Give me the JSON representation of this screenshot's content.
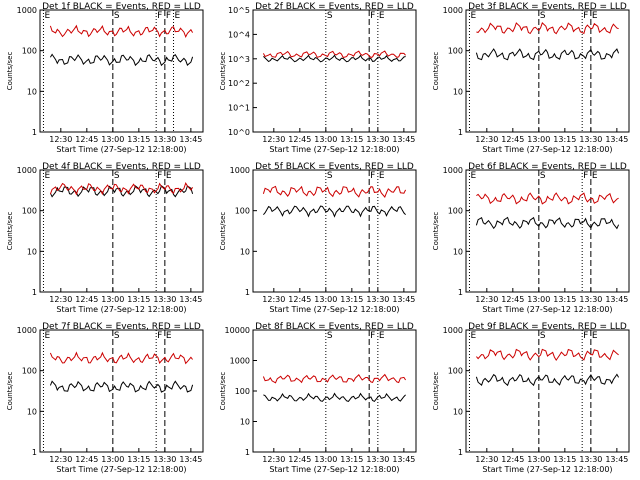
{
  "chart_data": [
    {
      "type": "line",
      "title": "Det 1f BLACK = Events, RED = LLD",
      "ylabel": "Counts/sec",
      "xlabel": "Start Time (27-Sep-12 12:18:00)",
      "yscale": "log",
      "ylim": [
        1,
        1000
      ],
      "ytick_labels": [
        "1",
        "10",
        "100",
        "1000"
      ],
      "x_ticks": [
        "12:30",
        "12:45",
        "13:00",
        "13:15",
        "13:30",
        "13:45"
      ],
      "markers": {
        "E": "12:20",
        "S": "13:00",
        "F": "13:25",
        "F2": "13:30",
        "E2": "13:35"
      },
      "series": [
        {
          "color": "#000000",
          "level": 60
        },
        {
          "color": "#cc0000",
          "level": 300
        }
      ]
    },
    {
      "type": "line",
      "title": "Det 2f BLACK = Events, RED = LLD",
      "ylabel": "Counts/sec",
      "xlabel": "Start Time (27-Sep-12 12:18:00)",
      "yscale": "log",
      "ylim": [
        1,
        100000
      ],
      "ytick_labels": [
        "10^0",
        "10^1",
        "10^2",
        "10^3",
        "10^4",
        "10^5"
      ],
      "x_ticks": [
        "12:30",
        "12:45",
        "13:00",
        "13:15",
        "13:30",
        "13:45"
      ],
      "markers": {
        "S": "13:00",
        "F": "13:25",
        "E": "13:30"
      },
      "series": [
        {
          "color": "#000000",
          "level": 1000
        },
        {
          "color": "#cc0000",
          "level": 1500
        }
      ]
    },
    {
      "type": "line",
      "title": "Det 3f BLACK = Events, RED = LLD",
      "ylabel": "Counts/sec",
      "xlabel": "Start Time (27-Sep-12 12:18:00)",
      "yscale": "log",
      "ylim": [
        1,
        1000
      ],
      "ytick_labels": [
        "1",
        "10",
        "100",
        "1000"
      ],
      "x_ticks": [
        "12:30",
        "12:45",
        "13:00",
        "13:15",
        "13:30",
        "13:45"
      ],
      "markers": {
        "E": "12:20",
        "S": "13:00",
        "F": "13:25",
        "E2": "13:30"
      },
      "series": [
        {
          "color": "#000000",
          "level": 80
        },
        {
          "color": "#cc0000",
          "level": 350
        }
      ]
    },
    {
      "type": "line",
      "title": "Det 4f BLACK = Events, RED = LLD",
      "ylabel": "Counts/sec",
      "xlabel": "Start Time (27-Sep-12 12:18:00)",
      "yscale": "log",
      "ylim": [
        1,
        1000
      ],
      "ytick_labels": [
        "1",
        "10",
        "100",
        "1000"
      ],
      "x_ticks": [
        "12:30",
        "12:45",
        "13:00",
        "13:15",
        "13:30",
        "13:45"
      ],
      "markers": {
        "E": "12:20",
        "S": "13:00",
        "F": "13:25",
        "E2": "13:30"
      },
      "series": [
        {
          "color": "#000000",
          "level": 300
        },
        {
          "color": "#cc0000",
          "level": 350
        }
      ]
    },
    {
      "type": "line",
      "title": "Det 5f BLACK = Events, RED = LLD",
      "ylabel": "Counts/sec",
      "xlabel": "Start Time (27-Sep-12 12:18:00)",
      "yscale": "log",
      "ylim": [
        1,
        1000
      ],
      "ytick_labels": [
        "1",
        "10",
        "100",
        "1000"
      ],
      "x_ticks": [
        "12:30",
        "12:45",
        "13:00",
        "13:15",
        "13:30",
        "13:45"
      ],
      "markers": {
        "S": "13:00",
        "F": "13:25",
        "E": "13:30"
      },
      "series": [
        {
          "color": "#000000",
          "level": 100
        },
        {
          "color": "#cc0000",
          "level": 300
        }
      ]
    },
    {
      "type": "line",
      "title": "Det 6f BLACK = Events, RED = LLD",
      "ylabel": "Counts/sec",
      "xlabel": "Start Time (27-Sep-12 12:18:00)",
      "yscale": "log",
      "ylim": [
        1,
        1000
      ],
      "ytick_labels": [
        "1",
        "10",
        "100",
        "1000"
      ],
      "x_ticks": [
        "12:30",
        "12:45",
        "13:00",
        "13:15",
        "13:30",
        "13:45"
      ],
      "markers": {
        "E": "12:20",
        "S": "13:00",
        "F": "13:25",
        "E2": "13:30"
      },
      "series": [
        {
          "color": "#000000",
          "level": 50
        },
        {
          "color": "#cc0000",
          "level": 200
        }
      ]
    },
    {
      "type": "line",
      "title": "Det 7f BLACK = Events, RED = LLD",
      "ylabel": "Counts/sec",
      "xlabel": "Start Time (27-Sep-12 12:18:00)",
      "yscale": "log",
      "ylim": [
        1,
        1000
      ],
      "ytick_labels": [
        "1",
        "10",
        "100",
        "1000"
      ],
      "x_ticks": [
        "12:30",
        "12:45",
        "13:00",
        "13:15",
        "13:30",
        "13:45"
      ],
      "markers": {
        "E": "12:20",
        "S": "13:00",
        "F": "13:25",
        "E2": "13:30"
      },
      "series": [
        {
          "color": "#000000",
          "level": 40
        },
        {
          "color": "#cc0000",
          "level": 200
        }
      ]
    },
    {
      "type": "line",
      "title": "Det 8f BLACK = Events, RED = LLD",
      "ylabel": "Counts/sec",
      "xlabel": "Start Time (27-Sep-12 12:18:00)",
      "yscale": "log",
      "ylim": [
        1,
        10000
      ],
      "ytick_labels": [
        "1",
        "10",
        "100",
        "1000",
        "10000"
      ],
      "x_ticks": [
        "12:30",
        "12:45",
        "13:00",
        "13:15",
        "13:30",
        "13:45"
      ],
      "markers": {
        "S": "13:00",
        "F": "13:25",
        "E": "13:30"
      },
      "series": [
        {
          "color": "#000000",
          "level": 60
        },
        {
          "color": "#cc0000",
          "level": 250
        }
      ]
    },
    {
      "type": "line",
      "title": "Det 9f BLACK = Events, RED = LLD",
      "ylabel": "Counts/sec",
      "xlabel": "Start Time (27-Sep-12 12:18:00)",
      "yscale": "log",
      "ylim": [
        1,
        1000
      ],
      "ytick_labels": [
        "1",
        "10",
        "100",
        "1000"
      ],
      "x_ticks": [
        "12:30",
        "12:45",
        "13:00",
        "13:15",
        "13:30",
        "13:45"
      ],
      "markers": {
        "E": "12:20",
        "S": "13:00",
        "F": "13:25",
        "E2": "13:30"
      },
      "series": [
        {
          "color": "#000000",
          "level": 60
        },
        {
          "color": "#cc0000",
          "level": 250
        }
      ]
    }
  ]
}
